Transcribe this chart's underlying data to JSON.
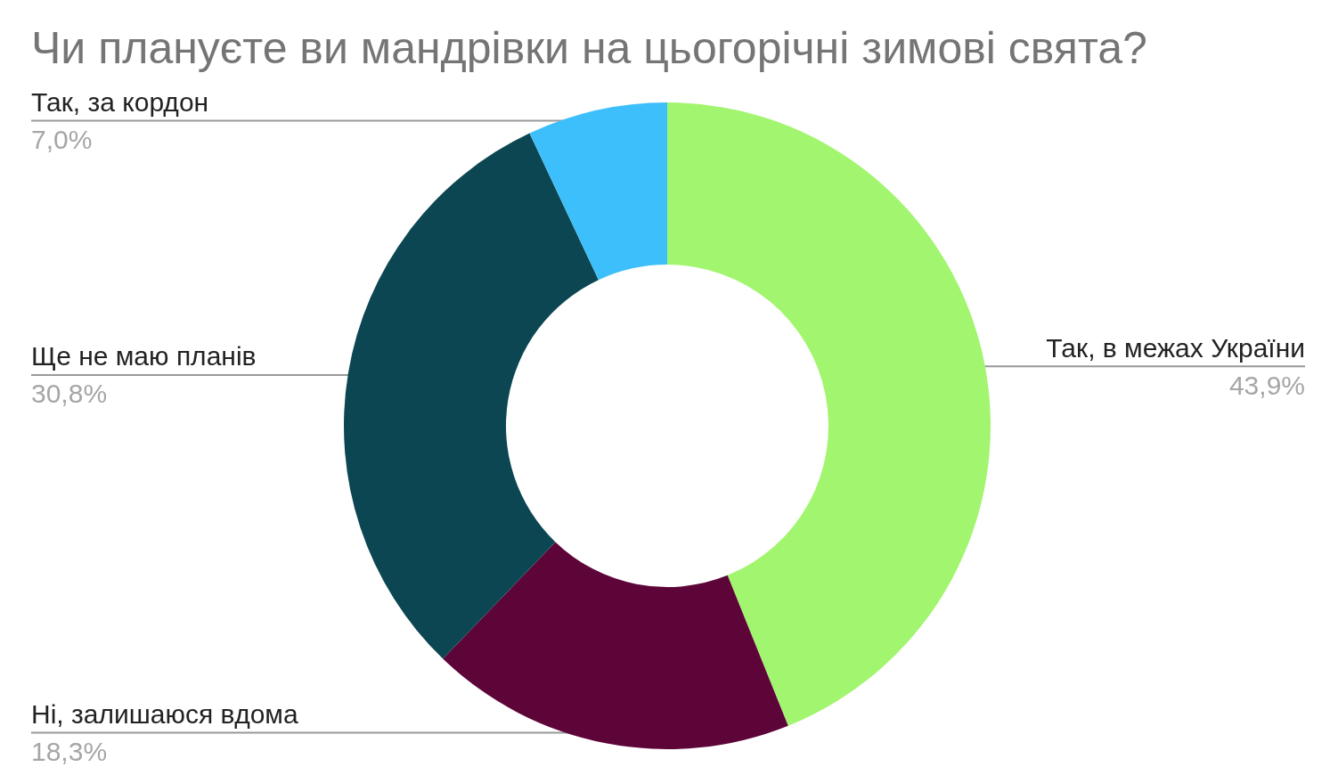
{
  "chart_data": {
    "type": "donut",
    "title": "Чи плануєте ви мандрівки на цьогорічні зимові свята?",
    "categories": [
      "Так, в межах України",
      "Ні, залишаюся вдома",
      "Ще не маю планів",
      "Так, за кордон"
    ],
    "values": [
      43.9,
      18.3,
      30.8,
      7.0
    ],
    "colors": [
      "#a2f56e",
      "#5d0439",
      "#0c4652",
      "#3cbffa"
    ],
    "value_labels": [
      "43,9%",
      "18,3%",
      "30,8%",
      "7,0%"
    ]
  }
}
